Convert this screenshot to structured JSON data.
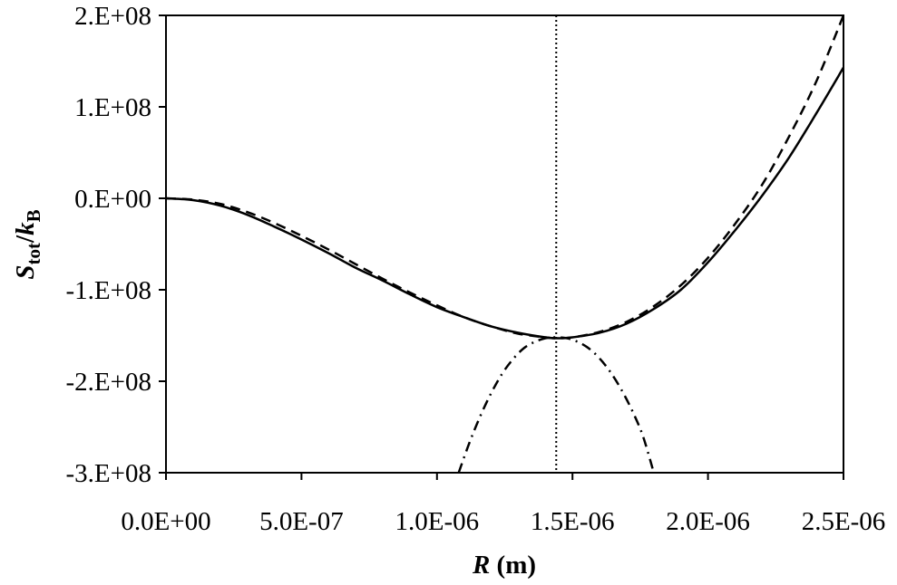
{
  "chart_data": {
    "type": "line",
    "xlabel": {
      "symbol": "R",
      "unit": " (m)"
    },
    "ylabel": {
      "symbol": "S",
      "sub1": "tot",
      "slash": "/",
      "symbol2": "k",
      "sub2": "B"
    },
    "xlim": [
      0,
      2.5e-06
    ],
    "ylim": [
      -300000000.0,
      200000000.0
    ],
    "x_ticks": [
      {
        "value": 0,
        "label": "0.0E+00"
      },
      {
        "value": 5e-07,
        "label": "5.0E-07"
      },
      {
        "value": 1e-06,
        "label": "1.0E-06"
      },
      {
        "value": 1.5e-06,
        "label": "1.5E-06"
      },
      {
        "value": 2e-06,
        "label": "2.0E-06"
      },
      {
        "value": 2.5e-06,
        "label": "2.5E-06"
      }
    ],
    "y_ticks": [
      {
        "value": 200000000.0,
        "label": "2.E+08"
      },
      {
        "value": 100000000.0,
        "label": "1.E+08"
      },
      {
        "value": 0,
        "label": "0.E+00"
      },
      {
        "value": -100000000.0,
        "label": "-1.E+08"
      },
      {
        "value": -200000000.0,
        "label": "-2.E+08"
      },
      {
        "value": -300000000.0,
        "label": "-3.E+08"
      }
    ],
    "grid": false,
    "legend": "none",
    "vertical_line_x": 1.44e-06,
    "series": [
      {
        "style": "solid",
        "x": [
          0,
          1e-07,
          2e-07,
          3e-07,
          4e-07,
          5e-07,
          6e-07,
          7e-07,
          8e-07,
          9e-07,
          1e-06,
          1.1e-06,
          1.2e-06,
          1.3e-06,
          1.4e-06,
          1.44e-06,
          1.5e-06,
          1.6e-06,
          1.7e-06,
          1.8e-06,
          1.9e-06,
          2e-06,
          2.1e-06,
          2.2e-06,
          2.3e-06,
          2.4e-06,
          2.5e-06
        ],
        "y": [
          0,
          -2000000.0,
          -8000000.0,
          -18000000.0,
          -31000000.0,
          -45000000.0,
          -60000000.0,
          -76000000.0,
          -90000000.0,
          -105000000.0,
          -119000000.0,
          -130000000.0,
          -140000000.0,
          -147000000.0,
          -152000000.0,
          -153000000.0,
          -152000000.0,
          -147000000.0,
          -137000000.0,
          -121000000.0,
          -100000000.0,
          -70000000.0,
          -35000000.0,
          3000000.0,
          45000000.0,
          93000000.0,
          143000000.0
        ]
      },
      {
        "style": "dashed",
        "x": [
          0,
          1e-07,
          2e-07,
          3e-07,
          4e-07,
          5e-07,
          6e-07,
          7e-07,
          8e-07,
          9e-07,
          1e-06,
          1.1e-06,
          1.2e-06,
          1.3e-06,
          1.4e-06,
          1.44e-06,
          1.5e-06,
          1.6e-06,
          1.7e-06,
          1.8e-06,
          1.9e-06,
          2e-06,
          2.1e-06,
          2.2e-06,
          2.3e-06,
          2.4e-06,
          2.5e-06
        ],
        "y": [
          0,
          -1500000.0,
          -6000000.0,
          -15000000.0,
          -27000000.0,
          -41000000.0,
          -56000000.0,
          -72000000.0,
          -88000000.0,
          -103000000.0,
          -117000000.0,
          -130000000.0,
          -140000000.0,
          -148000000.0,
          -152000000.0,
          -153000000.0,
          -152000000.0,
          -146000000.0,
          -135000000.0,
          -118000000.0,
          -95000000.0,
          -65000000.0,
          -28000000.0,
          15000000.0,
          68000000.0,
          128000000.0,
          200000000.0
        ]
      },
      {
        "style": "dash-dot",
        "x": [
          1.08e-06,
          1.12e-06,
          1.16e-06,
          1.2e-06,
          1.24e-06,
          1.28e-06,
          1.32e-06,
          1.36e-06,
          1.4e-06,
          1.44e-06,
          1.48e-06,
          1.52e-06,
          1.56e-06,
          1.6e-06,
          1.64e-06,
          1.68e-06,
          1.72e-06,
          1.76e-06,
          1.8e-06
        ],
        "y": [
          -300000000.0,
          -267000000.0,
          -238000000.0,
          -213000000.0,
          -192000000.0,
          -176000000.0,
          -164000000.0,
          -157000000.0,
          -153000000.0,
          -152000000.0,
          -153000000.0,
          -157000000.0,
          -164000000.0,
          -175000000.0,
          -190000000.0,
          -209000000.0,
          -232000000.0,
          -260000000.0,
          -300000000.0
        ]
      }
    ]
  }
}
